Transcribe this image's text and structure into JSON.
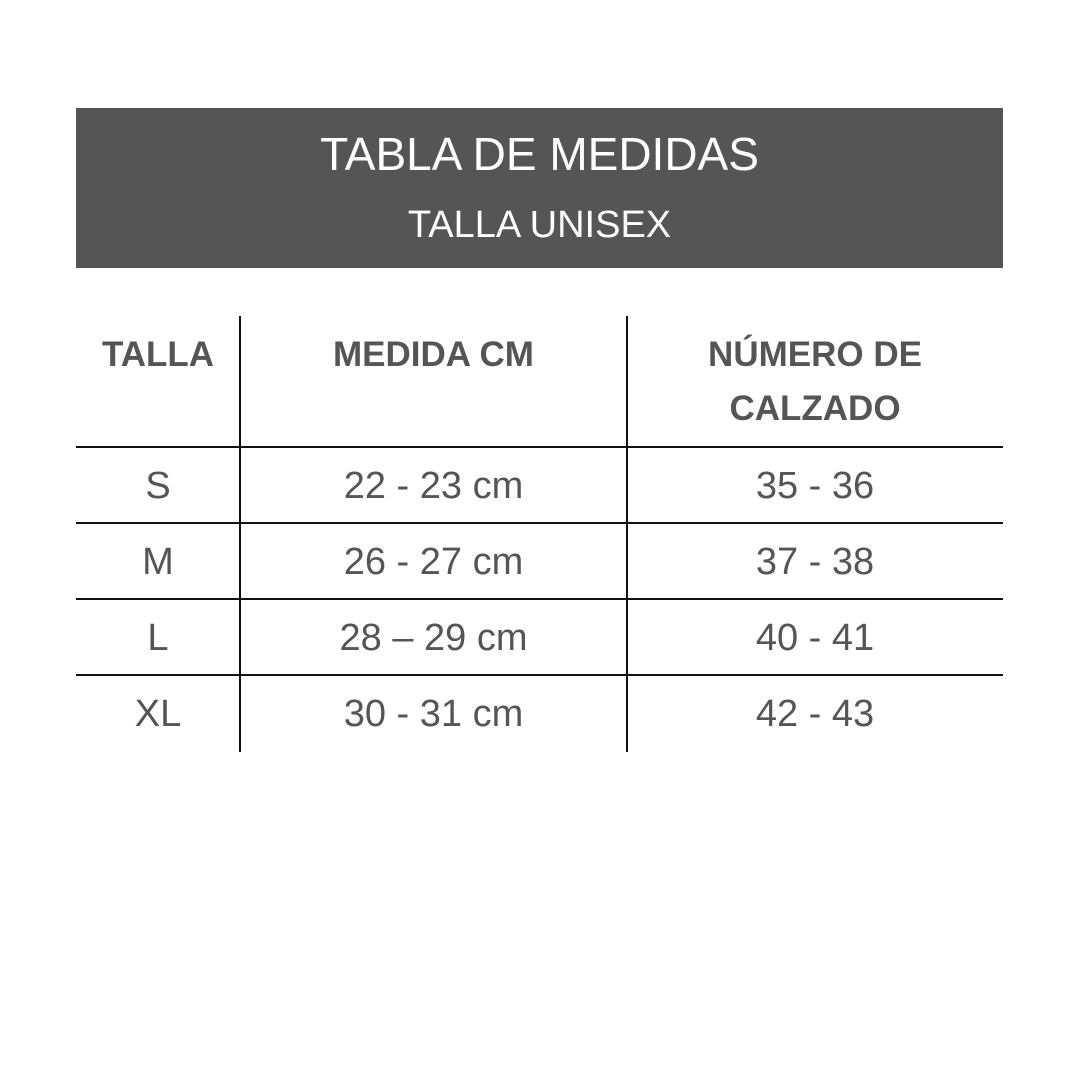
{
  "header": {
    "title": "TABLA DE MEDIDAS",
    "subtitle": "TALLA UNISEX",
    "background": "#555555"
  },
  "table": {
    "columns": [
      "TALLA",
      "MEDIDA CM",
      "NÚMERO DE CALZADO"
    ],
    "rows": [
      [
        "S",
        "22 - 23 cm",
        "35 - 36"
      ],
      [
        "M",
        "26 - 27 cm",
        "37 - 38"
      ],
      [
        "L",
        "28 – 29 cm",
        "40 - 41"
      ],
      [
        "XL",
        "30 - 31 cm",
        "42 - 43"
      ]
    ]
  }
}
